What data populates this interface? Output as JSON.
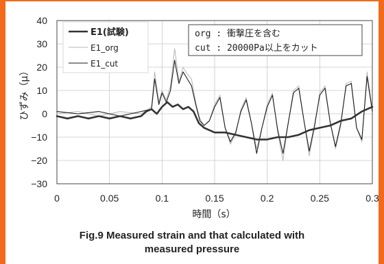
{
  "chart_data": {
    "type": "line",
    "ylabel": "ひずみ（μ）",
    "xlabel": "時間（s）",
    "xlim": [
      0,
      0.3
    ],
    "ylim": [
      -30,
      40
    ],
    "xticks": [
      "0",
      "0.05",
      "0.1",
      "0.15",
      "0.2",
      "0.25",
      "0.3"
    ],
    "yticks": [
      "−30",
      "−20",
      "−10",
      "0",
      "10",
      "20",
      "30",
      "40"
    ],
    "grid": true,
    "legend_position": "top-left",
    "annotation": [
      "org : 衝撃圧を含む",
      "cut : 20000Pa以上をカット"
    ],
    "series": [
      {
        "name": "E1(試験)",
        "color": "#333333",
        "width": 2.6,
        "x": [
          0,
          0.01,
          0.02,
          0.03,
          0.04,
          0.05,
          0.06,
          0.07,
          0.08,
          0.085,
          0.09,
          0.095,
          0.1,
          0.105,
          0.11,
          0.115,
          0.12,
          0.125,
          0.13,
          0.135,
          0.14,
          0.15,
          0.16,
          0.17,
          0.18,
          0.19,
          0.2,
          0.21,
          0.22,
          0.23,
          0.24,
          0.25,
          0.26,
          0.27,
          0.28,
          0.29,
          0.3
        ],
        "y": [
          -1,
          -2,
          -1,
          -2,
          -1,
          -2,
          -1,
          -2,
          -1,
          1,
          2,
          0,
          3,
          5,
          3,
          4,
          2,
          3,
          1,
          -4,
          -6,
          -8,
          -8,
          -9,
          -10,
          -11,
          -11,
          -10,
          -10,
          -9,
          -7,
          -6,
          -5,
          -3,
          -2,
          1,
          3
        ]
      },
      {
        "name": "E1_org",
        "color": "#b5b5b5",
        "width": 1.0,
        "x": [
          0,
          0.02,
          0.04,
          0.06,
          0.08,
          0.09,
          0.093,
          0.097,
          0.1,
          0.104,
          0.108,
          0.112,
          0.116,
          0.12,
          0.124,
          0.128,
          0.132,
          0.136,
          0.14,
          0.145,
          0.15,
          0.155,
          0.16,
          0.165,
          0.17,
          0.175,
          0.18,
          0.185,
          0.19,
          0.195,
          0.2,
          0.205,
          0.21,
          0.215,
          0.22,
          0.225,
          0.23,
          0.235,
          0.24,
          0.245,
          0.25,
          0.255,
          0.26,
          0.265,
          0.27,
          0.275,
          0.28,
          0.285,
          0.29,
          0.295,
          0.3
        ],
        "y": [
          0,
          1,
          -1,
          1,
          0,
          3,
          18,
          5,
          10,
          6,
          12,
          28,
          14,
          20,
          17,
          15,
          5,
          -2,
          -5,
          -3,
          4,
          8,
          -6,
          -13,
          -9,
          2,
          7,
          -4,
          -15,
          -6,
          4,
          9,
          -8,
          -20,
          -4,
          10,
          12,
          -3,
          -18,
          -6,
          9,
          12,
          -4,
          -15,
          -5,
          13,
          14,
          -6,
          -12,
          18,
          2
        ]
      },
      {
        "name": "E1_cut",
        "color": "#1a1a1a",
        "width": 1.1,
        "x": [
          0,
          0.02,
          0.04,
          0.06,
          0.08,
          0.09,
          0.093,
          0.097,
          0.1,
          0.104,
          0.108,
          0.112,
          0.116,
          0.12,
          0.124,
          0.128,
          0.132,
          0.136,
          0.14,
          0.145,
          0.15,
          0.155,
          0.16,
          0.165,
          0.17,
          0.175,
          0.18,
          0.185,
          0.19,
          0.195,
          0.2,
          0.205,
          0.21,
          0.215,
          0.22,
          0.225,
          0.23,
          0.235,
          0.24,
          0.245,
          0.25,
          0.255,
          0.26,
          0.265,
          0.27,
          0.275,
          0.28,
          0.285,
          0.29,
          0.295,
          0.3
        ],
        "y": [
          1,
          0,
          1,
          -1,
          1,
          2,
          15,
          4,
          9,
          5,
          10,
          23,
          13,
          18,
          15,
          12,
          4,
          -3,
          -5,
          -3,
          3,
          7,
          -6,
          -12,
          -8,
          1,
          6,
          -4,
          -17,
          -6,
          3,
          8,
          -7,
          -17,
          -4,
          9,
          11,
          -3,
          -16,
          -5,
          8,
          11,
          -4,
          -14,
          -4,
          12,
          13,
          -6,
          -11,
          16,
          1
        ]
      }
    ]
  },
  "caption_line1": "Fig.9    Measured strain and that calculated with",
  "caption_line2": "measured pressure"
}
